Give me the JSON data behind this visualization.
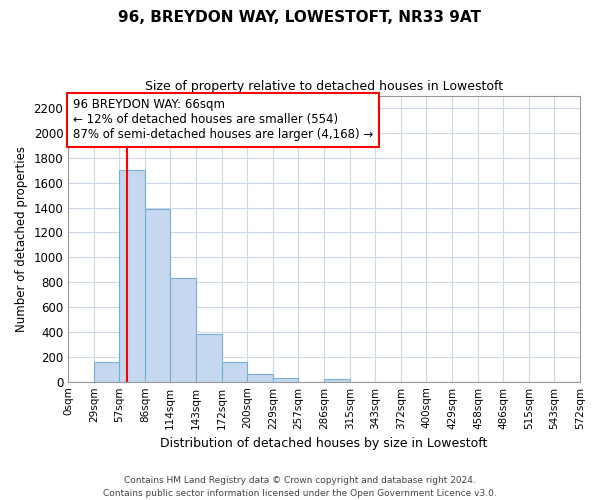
{
  "title": "96, BREYDON WAY, LOWESTOFT, NR33 9AT",
  "subtitle": "Size of property relative to detached houses in Lowestoft",
  "xlabel": "Distribution of detached houses by size in Lowestoft",
  "ylabel": "Number of detached properties",
  "bar_color": "#c5d8ef",
  "bar_edge_color": "#7aafd4",
  "bin_edges": [
    0,
    29,
    57,
    86,
    114,
    143,
    172,
    200,
    229,
    257,
    286,
    315,
    343,
    372,
    400,
    429,
    458,
    486,
    515,
    543,
    572
  ],
  "bin_labels": [
    "0sqm",
    "29sqm",
    "57sqm",
    "86sqm",
    "114sqm",
    "143sqm",
    "172sqm",
    "200sqm",
    "229sqm",
    "257sqm",
    "286sqm",
    "315sqm",
    "343sqm",
    "372sqm",
    "400sqm",
    "429sqm",
    "458sqm",
    "486sqm",
    "515sqm",
    "543sqm",
    "572sqm"
  ],
  "bar_heights": [
    0,
    155,
    1700,
    1390,
    830,
    385,
    160,
    65,
    30,
    0,
    25,
    0,
    0,
    0,
    0,
    0,
    0,
    0,
    0,
    0
  ],
  "ylim": [
    0,
    2300
  ],
  "yticks": [
    0,
    200,
    400,
    600,
    800,
    1000,
    1200,
    1400,
    1600,
    1800,
    2000,
    2200
  ],
  "vline_x": 66,
  "annotation_title": "96 BREYDON WAY: 66sqm",
  "annotation_line1": "← 12% of detached houses are smaller (554)",
  "annotation_line2": "87% of semi-detached houses are larger (4,168) →",
  "footer_line1": "Contains HM Land Registry data © Crown copyright and database right 2024.",
  "footer_line2": "Contains public sector information licensed under the Open Government Licence v3.0.",
  "background_color": "#ffffff",
  "grid_color": "#ccd8ea"
}
